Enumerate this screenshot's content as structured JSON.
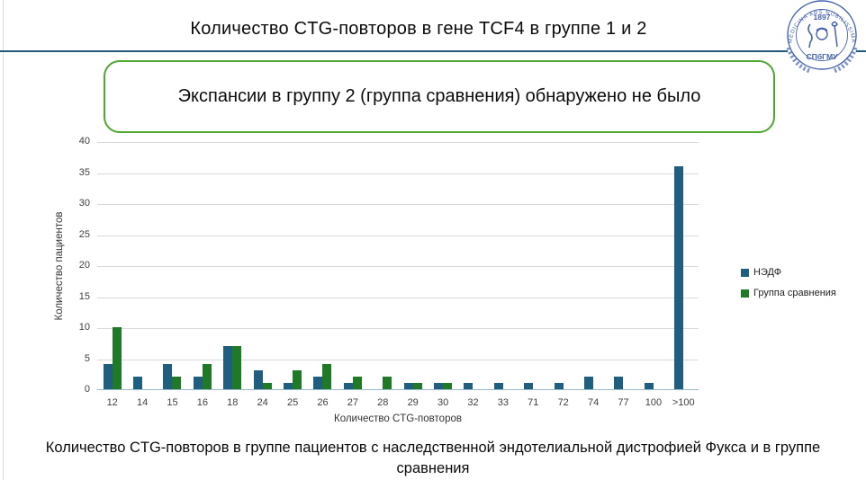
{
  "slide": {
    "title": "Количество CTG-повторов в гене TCF4 в группе 1 и 2",
    "callout_text": "Экспансии в группу 2 (группа сравнения) обнаружено не было",
    "caption": "Количество CTG-повторов в группе пациентов с наследственной эндотелиальной дистрофией Фукса и в группе сравнения"
  },
  "logo": {
    "motto": "MEDICINA ARS NOBILISSIMA",
    "year": "1897",
    "abbr": "СПбГМУ"
  },
  "chart_data": {
    "type": "bar",
    "title": "",
    "categories": [
      "12",
      "14",
      "15",
      "16",
      "18",
      "24",
      "25",
      "26",
      "27",
      "28",
      "29",
      "30",
      "32",
      "33",
      "71",
      "72",
      "74",
      "77",
      "100",
      ">100"
    ],
    "series": [
      {
        "name": "НЭДФ",
        "color": "#1f5e7e",
        "values": [
          4,
          2,
          4,
          2,
          7,
          3,
          1,
          2,
          1,
          0,
          1,
          1,
          1,
          1,
          1,
          1,
          2,
          2,
          1,
          36
        ]
      },
      {
        "name": "Группа сравнения",
        "color": "#1f7a28",
        "values": [
          10,
          0,
          2,
          4,
          7,
          1,
          3,
          4,
          2,
          2,
          1,
          1,
          0,
          0,
          0,
          0,
          0,
          0,
          0,
          0
        ]
      }
    ],
    "xlabel": "Количество CTG-повторов",
    "ylabel": "Количество пациентов",
    "ylim": [
      0,
      40
    ],
    "yticks": [
      0,
      5,
      10,
      15,
      20,
      25,
      30,
      35,
      40
    ],
    "legend_position": "right",
    "grid": true
  },
  "colors": {
    "separator": "#1c5a78",
    "callout_border": "#4ea72e",
    "gridline": "#d9d9d9",
    "axis_line": "#9cb9cc",
    "logo_blue": "#4663ae"
  }
}
